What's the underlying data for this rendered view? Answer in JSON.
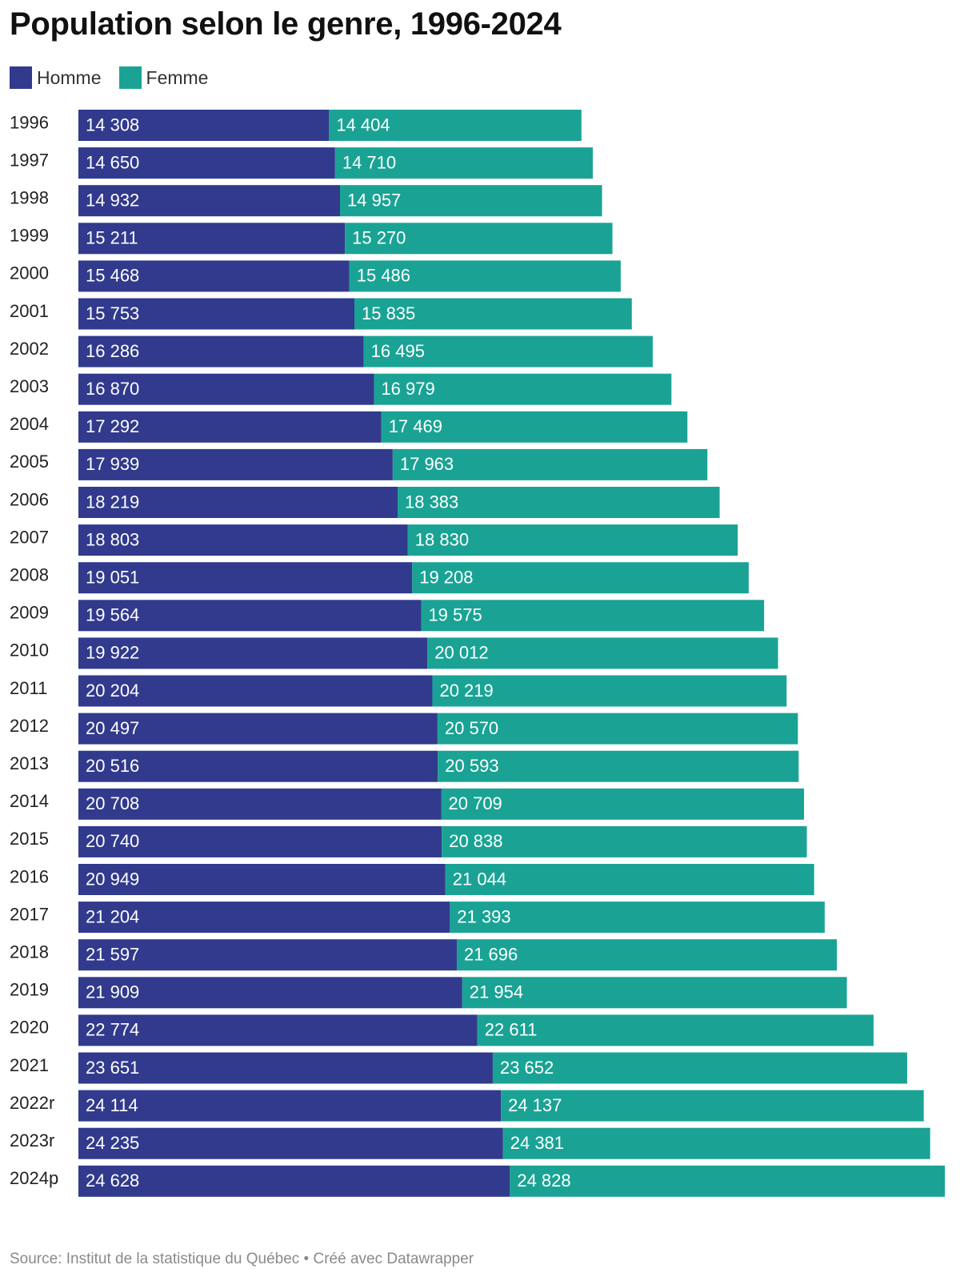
{
  "title": "Population selon le genre, 1996-2024",
  "legend": [
    {
      "label": "Homme",
      "color": "#313a8c"
    },
    {
      "label": "Femme",
      "color": "#1aa394"
    }
  ],
  "chart_data": {
    "type": "bar",
    "orientation": "horizontal",
    "stacked": true,
    "title": "Population selon le genre, 1996-2024",
    "categories": [
      "1996",
      "1997",
      "1998",
      "1999",
      "2000",
      "2001",
      "2002",
      "2003",
      "2004",
      "2005",
      "2006",
      "2007",
      "2008",
      "2009",
      "2010",
      "2011",
      "2012",
      "2013",
      "2014",
      "2015",
      "2016",
      "2017",
      "2018",
      "2019",
      "2020",
      "2021",
      "2022r",
      "2023r",
      "2024p"
    ],
    "series": [
      {
        "name": "Homme",
        "color": "#313a8c",
        "values": [
          14308,
          14650,
          14932,
          15211,
          15468,
          15753,
          16286,
          16870,
          17292,
          17939,
          18219,
          18803,
          19051,
          19564,
          19922,
          20204,
          20497,
          20516,
          20708,
          20740,
          20949,
          21204,
          21597,
          21909,
          22774,
          23651,
          24114,
          24235,
          24628
        ],
        "labels": [
          "14 308",
          "14 650",
          "14 932",
          "15 211",
          "15 468",
          "15 753",
          "16 286",
          "16 870",
          "17 292",
          "17 939",
          "18 219",
          "18 803",
          "19 051",
          "19 564",
          "19 922",
          "20 204",
          "20 497",
          "20 516",
          "20 708",
          "20 740",
          "20 949",
          "21 204",
          "21 597",
          "21 909",
          "22 774",
          "23 651",
          "24 114",
          "24 235",
          "24 628"
        ]
      },
      {
        "name": "Femme",
        "color": "#1aa394",
        "values": [
          14404,
          14710,
          14957,
          15270,
          15486,
          15835,
          16495,
          16979,
          17469,
          17963,
          18383,
          18830,
          19208,
          19575,
          20012,
          20219,
          20570,
          20593,
          20709,
          20838,
          21044,
          21393,
          21696,
          21954,
          22611,
          23652,
          24137,
          24381,
          24828
        ],
        "labels": [
          "14 404",
          "14 710",
          "14 957",
          "15 270",
          "15 486",
          "15 835",
          "16 495",
          "16 979",
          "17 469",
          "17 963",
          "18 383",
          "18 830",
          "19 208",
          "19 575",
          "20 012",
          "20 219",
          "20 570",
          "20 593",
          "20 709",
          "20 838",
          "21 044",
          "21 393",
          "21 696",
          "21 954",
          "22 611",
          "23 652",
          "24 137",
          "24 381",
          "24 828"
        ]
      }
    ],
    "grid": false,
    "legend_position": "top-left"
  },
  "source": "Source: Institut de la statistique du Québec • Créé avec Datawrapper"
}
